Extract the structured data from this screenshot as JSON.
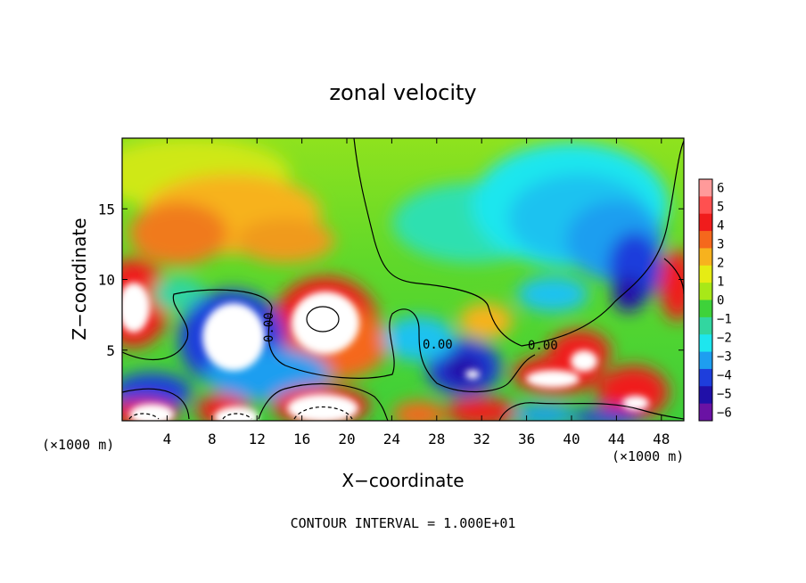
{
  "chart_data": {
    "type": "heatmap",
    "title": "zonal velocity",
    "xlabel": "X−coordinate",
    "ylabel": "Z−coordinate",
    "x_unit_left": "(×1000 m)",
    "x_unit_right": "(×1000 m)",
    "xlim": [
      0,
      50
    ],
    "ylim": [
      0,
      20
    ],
    "x_ticks": [
      4,
      8,
      12,
      16,
      20,
      24,
      28,
      32,
      36,
      40,
      44,
      48
    ],
    "y_ticks": [
      5,
      10,
      15
    ],
    "colorbar": {
      "levels": [
        6,
        5,
        4,
        3,
        2,
        1,
        0,
        -1,
        -2,
        -3,
        -4,
        -5,
        -6
      ],
      "labels": [
        "6",
        "5",
        "4",
        "3",
        "2",
        "1",
        "0",
        "−1",
        "−2",
        "−3",
        "−4",
        "−5",
        "−6"
      ],
      "colors": [
        "#ff9a9a",
        "#ff5050",
        "#f01c1c",
        "#f5681c",
        "#f7b21e",
        "#e6ec14",
        "#a8e818",
        "#3ed23a",
        "#32d6a0",
        "#1ee6ee",
        "#1e9ef0",
        "#1e3edc",
        "#2010a8",
        "#6a12a4"
      ]
    },
    "contour_labels": [
      "0.00",
      "0.00",
      "0.00"
    ],
    "footer": "CONTOUR INTERVAL = 1.000E+01"
  }
}
